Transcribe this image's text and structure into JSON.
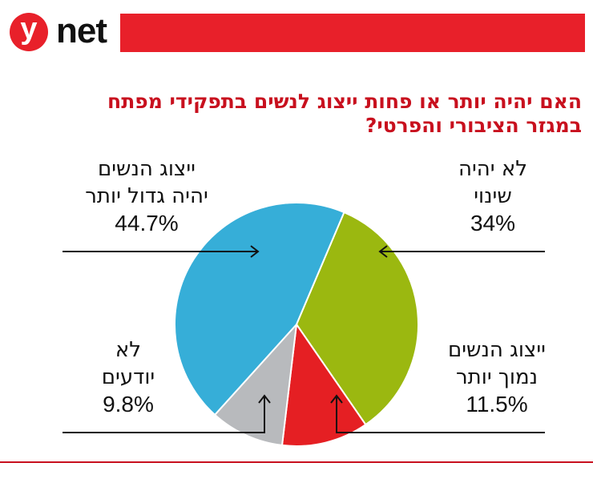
{
  "brand": {
    "logo_letter": "y",
    "logo_word": "net"
  },
  "question": "האם יהיה יותר או פחות ייצוג לנשים בתפקידי מפתח במגזר הציבורי והפרטי?",
  "colors": {
    "brand_red": "#e8202a",
    "title_red": "#c8101e"
  },
  "chart_data": {
    "type": "pie",
    "title": "האם יהיה יותר או פחות ייצוג לנשים בתפקידי מפתח במגזר הציבורי והפרטי?",
    "slices": [
      {
        "label_line1": "לא יהיה",
        "label_line2": "שינוי",
        "value": 34,
        "value_text": "34%",
        "color": "#9bb810"
      },
      {
        "label_line1": "ייצוג הנשים",
        "label_line2": "נמוך יותר",
        "value": 11.5,
        "value_text": "11.5%",
        "color": "#e51f23"
      },
      {
        "label_line1": "לא",
        "label_line2": "יודעים",
        "value": 9.8,
        "value_text": "9.8%",
        "color": "#b8babd"
      },
      {
        "label_line1": "ייצוג הנשים",
        "label_line2": "יהיה גדול יותר",
        "value": 44.7,
        "value_text": "44.7%",
        "color": "#36aed8"
      }
    ]
  }
}
